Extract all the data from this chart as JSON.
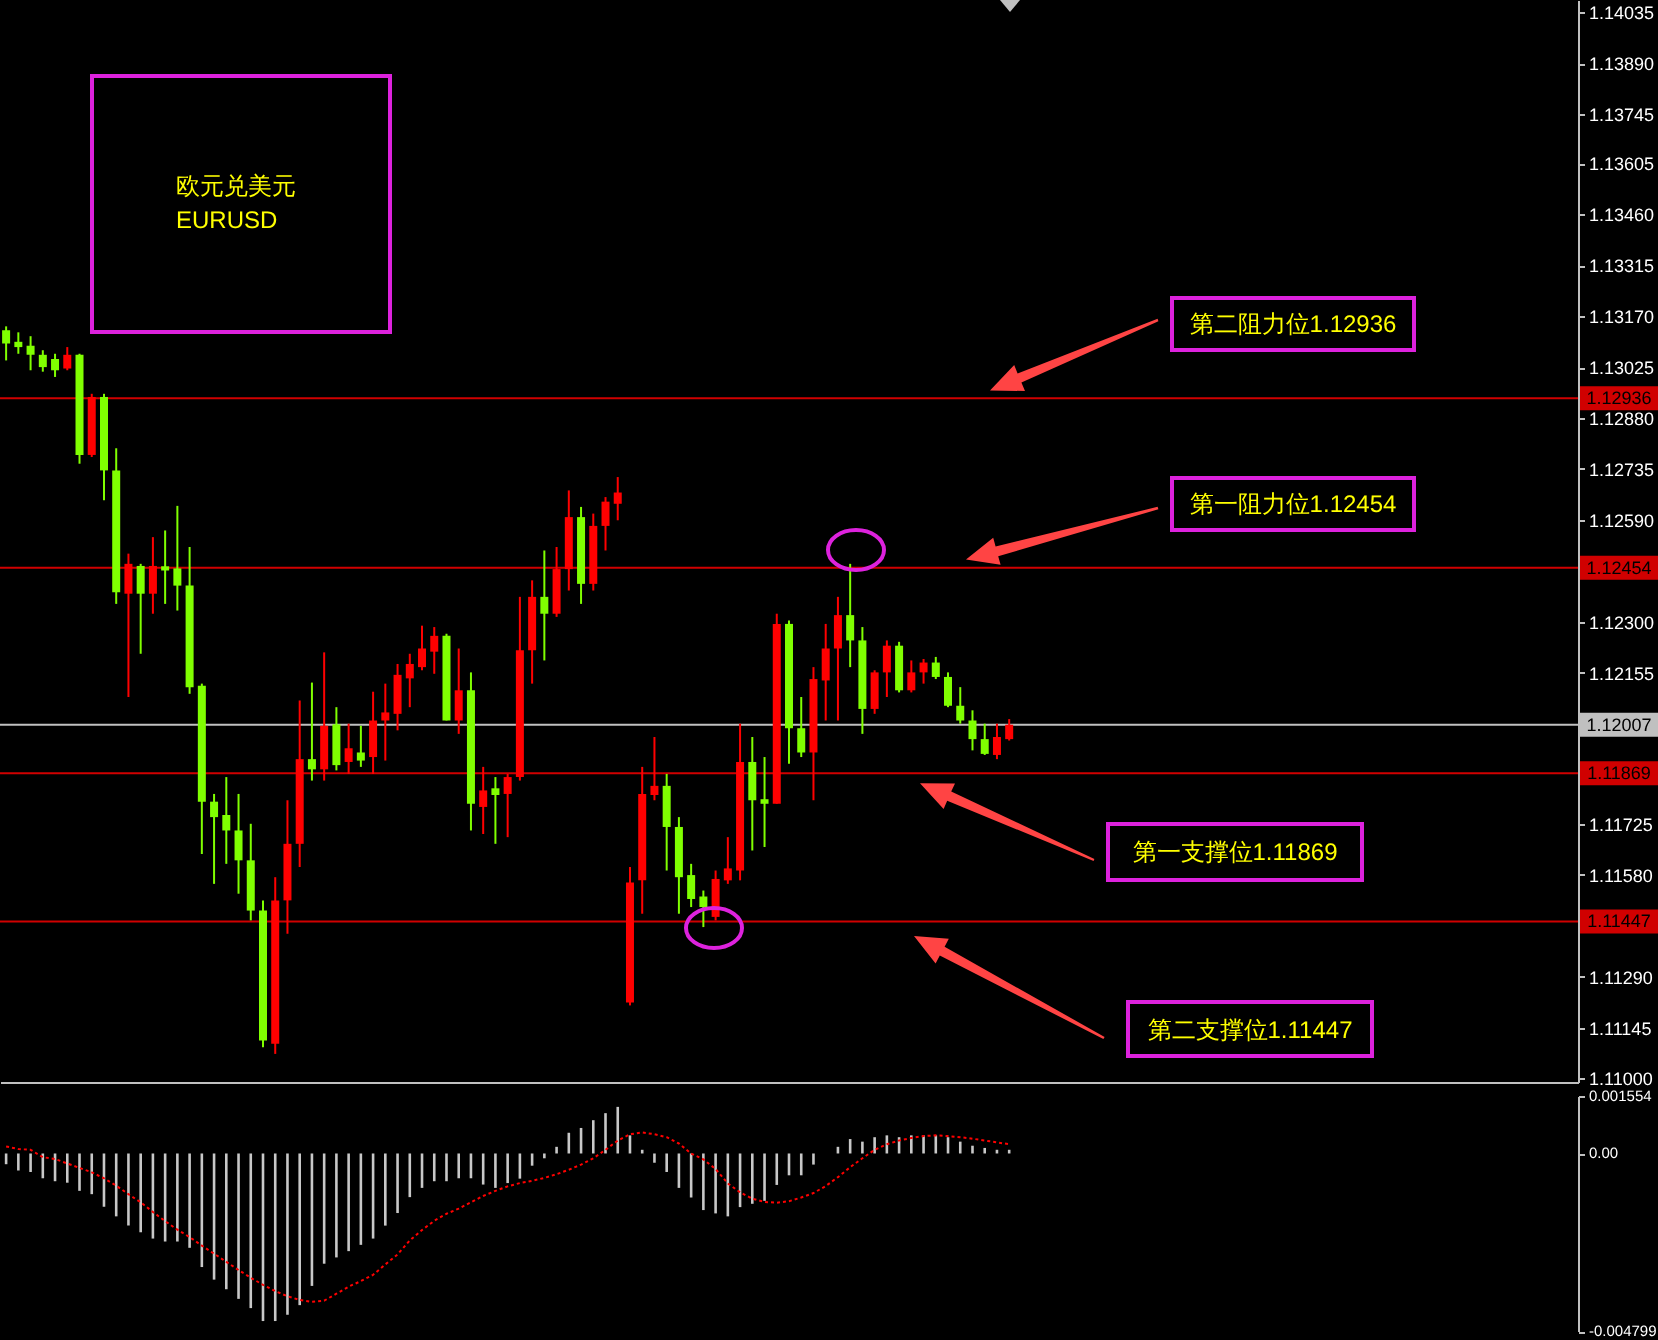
{
  "chart_data": [
    {
      "type": "candlestick",
      "title": "欧元兑美元",
      "subtitle": "EURUSD",
      "categories": [
        null,
        null,
        null,
        null,
        null,
        null,
        null,
        null,
        null,
        null,
        null,
        null,
        null,
        null,
        null,
        null,
        null,
        null,
        null,
        null,
        null,
        null,
        null,
        null,
        null,
        null,
        null,
        null,
        null,
        null,
        null,
        null,
        null,
        null,
        null,
        null,
        null,
        null,
        null,
        null,
        null,
        null,
        null,
        null,
        null,
        null,
        null,
        null,
        null,
        null,
        null,
        null,
        null,
        null,
        null,
        null,
        null,
        null,
        null,
        null,
        null,
        null,
        null,
        null,
        null,
        null,
        null,
        null,
        null,
        null,
        null,
        null,
        null,
        null,
        null,
        null,
        null,
        null,
        null,
        null,
        null,
        null,
        null,
        null,
        null,
        null,
        null,
        null,
        null,
        null,
        null,
        null,
        null,
        null,
        null,
        null,
        null,
        null,
        null,
        null,
        null,
        null,
        null,
        null,
        null,
        null,
        null,
        null,
        null,
        null,
        null,
        null,
        null,
        null,
        null,
        null,
        null,
        null,
        null,
        null,
        null,
        null,
        null,
        null,
        null,
        null,
        null,
        null,
        null
      ],
      "ohlc": [
        [
          1.1313,
          1.13141,
          1.13044,
          1.13092
        ],
        [
          1.13097,
          1.13124,
          1.13063,
          1.13082
        ],
        [
          1.13086,
          1.13113,
          1.13016,
          1.1306
        ],
        [
          1.1306,
          1.13073,
          1.13012,
          1.13025
        ],
        [
          1.13048,
          1.13063,
          1.12997,
          1.13016
        ],
        [
          1.13021,
          1.13082,
          1.13016,
          1.1306
        ],
        [
          1.1306,
          1.13063,
          1.1275,
          1.12775
        ],
        [
          1.12775,
          1.12949,
          1.12769,
          1.1294
        ],
        [
          1.1294,
          1.12949,
          1.12646,
          1.12731
        ],
        [
          1.12731,
          1.12794,
          1.12351,
          1.12384
        ],
        [
          1.1238,
          1.12494,
          1.12086,
          1.12465
        ],
        [
          1.12459,
          1.12465,
          1.12209,
          1.1238
        ],
        [
          1.1238,
          1.12541,
          1.12323,
          1.12459
        ],
        [
          1.12458,
          1.1256,
          1.12351,
          1.12446
        ],
        [
          1.12452,
          1.1263,
          1.12332,
          1.12403
        ],
        [
          1.12403,
          1.12513,
          1.12095,
          1.12114
        ],
        [
          1.12118,
          1.12124,
          1.11639,
          1.11788
        ],
        [
          1.11788,
          1.1181,
          1.11554,
          1.11744
        ],
        [
          1.1175,
          1.11858,
          1.11611,
          1.11706
        ],
        [
          1.11706,
          1.1181,
          1.11526,
          1.11621
        ],
        [
          1.11621,
          1.11725,
          1.1145,
          1.11478
        ],
        [
          1.11478,
          1.11507,
          1.11089,
          1.11108
        ],
        [
          1.11099,
          1.11573,
          1.1107,
          1.11507
        ],
        [
          1.11507,
          1.11792,
          1.11412,
          1.11668
        ],
        [
          1.11668,
          1.12076,
          1.11602,
          1.11909
        ],
        [
          1.11909,
          1.12127,
          1.11848,
          1.1188
        ],
        [
          1.1188,
          1.12213,
          1.11848,
          1.12004
        ],
        [
          1.12008,
          1.12057,
          1.11877,
          1.11892
        ],
        [
          1.11901,
          1.1201,
          1.11867,
          1.1194
        ],
        [
          1.11928,
          1.12004,
          1.11887,
          1.11905
        ],
        [
          1.11915,
          1.12101,
          1.11867,
          1.12019
        ],
        [
          1.12019,
          1.12124,
          1.11905,
          1.12042
        ],
        [
          1.12038,
          1.1218,
          1.11991,
          1.12149
        ],
        [
          1.12139,
          1.12209,
          1.12057,
          1.1218
        ],
        [
          1.12171,
          1.12289,
          1.12162,
          1.12224
        ],
        [
          1.12215,
          1.12285,
          1.12152,
          1.1226
        ],
        [
          1.1226,
          1.12266,
          1.12019,
          1.12019
        ],
        [
          1.12019,
          1.12224,
          1.11981,
          1.12105
        ],
        [
          1.12105,
          1.12156,
          1.11706,
          1.11782
        ],
        [
          1.11773,
          1.11887,
          1.11696,
          1.1182
        ],
        [
          1.11826,
          1.11858,
          1.11668,
          1.11807
        ],
        [
          1.1181,
          1.11867,
          1.11687,
          1.11858
        ],
        [
          1.11858,
          1.12371,
          1.11848,
          1.12219
        ],
        [
          1.12219,
          1.12418,
          1.12124,
          1.12371
        ],
        [
          1.12371,
          1.12503,
          1.1219,
          1.12323
        ],
        [
          1.12323,
          1.12513,
          1.12314,
          1.1245
        ],
        [
          1.1245,
          1.12674,
          1.12389,
          1.12598
        ],
        [
          1.12598,
          1.12627,
          1.12351,
          1.12408
        ],
        [
          1.12408,
          1.12608,
          1.12389,
          1.12573
        ],
        [
          1.12573,
          1.12655,
          1.12503,
          1.12642
        ],
        [
          1.12636,
          1.12712,
          1.12589,
          1.12668
        ],
        [
          1.11216,
          1.11602,
          1.11208,
          1.11558
        ],
        [
          1.11564,
          1.11887,
          1.11469,
          1.1181
        ],
        [
          1.11807,
          1.11972,
          1.11792,
          1.11833
        ],
        [
          1.11833,
          1.11867,
          1.11592,
          1.11716
        ],
        [
          1.11716,
          1.11744,
          1.11469,
          1.11573
        ],
        [
          1.11579,
          1.11611,
          1.11488,
          1.11511
        ],
        [
          1.11518,
          1.11535,
          1.11431,
          1.11488
        ],
        [
          1.1146,
          1.11592,
          1.1145,
          1.11568
        ],
        [
          1.11564,
          1.11687,
          1.11554,
          1.11598
        ],
        [
          1.11592,
          1.1201,
          1.11564,
          1.11901
        ],
        [
          1.11901,
          1.11972,
          1.11649,
          1.11792
        ],
        [
          1.11795,
          1.11915,
          1.11659,
          1.11782
        ],
        [
          1.11782,
          1.12323,
          1.11782,
          1.12294
        ],
        [
          1.12294,
          1.12304,
          1.11896,
          1.11997
        ],
        [
          1.11997,
          1.12086,
          1.11915,
          1.11928
        ],
        [
          1.11928,
          1.12171,
          1.11792,
          1.12137
        ],
        [
          1.12133,
          1.12294,
          1.12019,
          1.12224
        ],
        [
          1.12224,
          1.12371,
          1.12019,
          1.12319
        ],
        [
          1.12319,
          1.12465,
          1.12171,
          1.12247
        ],
        [
          1.12247,
          1.12285,
          1.11981,
          1.12052
        ],
        [
          1.12052,
          1.12162,
          1.12038,
          1.12156
        ],
        [
          1.12156,
          1.12247,
          1.12086,
          1.12232
        ],
        [
          1.12232,
          1.12243,
          1.12099,
          1.12105
        ],
        [
          1.12105,
          1.1219,
          1.12099,
          1.12156
        ],
        [
          1.12156,
          1.12194,
          1.12124,
          1.12184
        ],
        [
          1.12184,
          1.122,
          1.12137,
          1.12143
        ],
        [
          1.12143,
          1.12156,
          1.12057,
          1.12061
        ],
        [
          1.12061,
          1.12114,
          1.1201,
          1.12019
        ],
        [
          1.12019,
          1.12048,
          1.11934,
          1.11966
        ],
        [
          1.11966,
          1.1201,
          1.11921,
          1.11924
        ],
        [
          1.11921,
          1.1201,
          1.11909,
          1.11972
        ],
        [
          1.11966,
          1.12023,
          1.11962,
          1.12007
        ],
        null,
        null,
        null,
        null,
        null,
        null,
        null,
        null,
        null,
        null,
        null,
        null,
        null,
        null,
        null,
        null,
        null,
        null,
        null,
        null,
        null,
        null,
        null,
        null,
        null,
        null,
        null,
        null,
        null,
        null,
        null,
        null,
        null,
        null,
        null,
        null,
        null,
        null,
        null,
        null,
        null,
        null,
        null,
        null,
        null,
        null
      ],
      "colors": [
        "#80ff00",
        "#80ff00",
        "#80ff00",
        "#80ff00",
        "#80ff00",
        "#ff0000",
        "#80ff00",
        "#ff0000",
        "#80ff00",
        "#80ff00",
        "#ff0000",
        "#80ff00",
        "#ff0000",
        "#80ff00",
        "#80ff00",
        "#80ff00",
        "#80ff00",
        "#80ff00",
        "#80ff00",
        "#80ff00",
        "#80ff00",
        "#80ff00",
        "#ff0000",
        "#ff0000",
        "#ff0000",
        "#80ff00",
        "#ff0000",
        "#80ff00",
        "#ff0000",
        "#80ff00",
        "#ff0000",
        "#ff0000",
        "#ff0000",
        "#ff0000",
        "#ff0000",
        "#ff0000",
        "#80ff00",
        "#ff0000",
        "#80ff00",
        "#ff0000",
        "#80ff00",
        "#ff0000",
        "#ff0000",
        "#ff0000",
        "#80ff00",
        "#ff0000",
        "#ff0000",
        "#80ff00",
        "#ff0000",
        "#ff0000",
        "#ff0000",
        "#ff0000",
        "#ff0000",
        "#ff0000",
        "#80ff00",
        "#80ff00",
        "#80ff00",
        "#80ff00",
        "#ff0000",
        "#ff0000",
        "#ff0000",
        "#80ff00",
        "#80ff00",
        "#ff0000",
        "#80ff00",
        "#80ff00",
        "#ff0000",
        "#ff0000",
        "#ff0000",
        "#80ff00",
        "#80ff00",
        "#ff0000",
        "#ff0000",
        "#80ff00",
        "#ff0000",
        "#ff0000",
        "#80ff00",
        "#80ff00",
        "#80ff00",
        "#80ff00",
        "#80ff00",
        "#ff0000",
        "#ff0000",
        null,
        null,
        null,
        null,
        null,
        null,
        null,
        null,
        null,
        null,
        null,
        null,
        null,
        null,
        null,
        null,
        null,
        null,
        null,
        null,
        null,
        null,
        null,
        null,
        null,
        null,
        null,
        null,
        null,
        null,
        null,
        null,
        null,
        null,
        null,
        null,
        null,
        null,
        null,
        null,
        null,
        null,
        null,
        null,
        null,
        null
      ],
      "ylim": [
        1.1099,
        1.1407
      ],
      "yticks": [
        {
          "value": 1.11,
          "label": "1.11000"
        },
        1.11145,
        {
          "value": 1.1129,
          "label": "1.11290"
        },
        {
          "value": 1.1158,
          "label": "1.11580"
        },
        1.11725,
        1.12155,
        {
          "value": 1.123,
          "label": "1.12300"
        },
        {
          "value": 1.1259,
          "label": "1.12590"
        },
        1.12735,
        {
          "value": 1.1288,
          "label": "1.12880"
        },
        1.13025,
        {
          "value": 1.1317,
          "label": "1.13170"
        },
        1.13315,
        {
          "value": 1.1346,
          "label": "1.13460"
        },
        1.13605,
        1.13745,
        {
          "value": 1.1389,
          "label": "1.13890"
        },
        1.14035
      ],
      "ref_lines": [
        {
          "axis": "y",
          "value": 1.12936,
          "label": "1.12936",
          "color": "#d00000"
        },
        {
          "axis": "y",
          "value": 1.12454,
          "label": "1.12454",
          "color": "#d00000"
        },
        {
          "axis": "y",
          "value": 1.12007,
          "label": "1.12007",
          "color": "#c0c0c0"
        },
        {
          "axis": "y",
          "value": 1.11869,
          "label": "1.11869",
          "color": "#d00000"
        },
        {
          "axis": "y",
          "value": 1.11447,
          "label": "1.11447",
          "color": "#d00000"
        }
      ],
      "annotations": [
        {
          "text": "第二阻力位1.12936",
          "y": 1.12936
        },
        {
          "text": "第一阻力位1.12454",
          "y": 1.12454
        },
        {
          "text": "第一支撑位1.11869",
          "y": 1.11869
        },
        "第二支撑位1.11447"
      ],
      "tick_labels": "y"
    },
    {
      "type": "bar",
      "categories": [
        null,
        null,
        null,
        null,
        null,
        null,
        null,
        null,
        null,
        null,
        null,
        null,
        null,
        null,
        null,
        null,
        null,
        null,
        null,
        null,
        null,
        null,
        null,
        null,
        null,
        null,
        null,
        null,
        null,
        null,
        null,
        null,
        null,
        null,
        null,
        null,
        null,
        null,
        null,
        null,
        null,
        null,
        null,
        null,
        null,
        null,
        null,
        null,
        null,
        null,
        null,
        null,
        null,
        null,
        null,
        null,
        null,
        null,
        null,
        null,
        null,
        null,
        null,
        null,
        null,
        null,
        null,
        null,
        null,
        null,
        null,
        null,
        null,
        null,
        null,
        null,
        null,
        null,
        null,
        null,
        null,
        null,
        null,
        null,
        null,
        null,
        null,
        null,
        null,
        null,
        null,
        null,
        null,
        null,
        null,
        null,
        null,
        null,
        null,
        null,
        null,
        null,
        null,
        null,
        null,
        null,
        null,
        null,
        null,
        null,
        null,
        null,
        null,
        null,
        null,
        null,
        null,
        null,
        null,
        null,
        null,
        null,
        null,
        null,
        null,
        null,
        null,
        null,
        null
      ],
      "series": [
        {
          "color": "#c8c8c8",
          "values": [
            -0.00029,
            -0.00046,
            -0.0005,
            -0.00067,
            -0.00075,
            -0.00079,
            -0.00101,
            -0.0011,
            -0.00144,
            -0.0017,
            -0.00195,
            -0.00213,
            -0.0023,
            -0.00238,
            -0.00238,
            -0.00255,
            -0.00307,
            -0.00341,
            -0.00367,
            -0.00393,
            -0.00418,
            -0.00453,
            -0.00453,
            -0.00436,
            -0.0041,
            -0.00358,
            -0.00298,
            -0.00281,
            -0.00264,
            -0.00247,
            -0.0023,
            -0.00195,
            -0.00161,
            -0.00118,
            -0.00093,
            -0.00075,
            -0.00075,
            -0.00067,
            -0.00067,
            -0.00084,
            -0.00093,
            -0.0008,
            -0.00068,
            -0.00033,
            -0.00013,
            0.00018,
            0.00056,
            0.00069,
            0.0009,
            0.00109,
            0.00126,
            0.00049,
            0.0001,
            -0.00025,
            -0.0005,
            -0.00093,
            -0.00119,
            -0.00153,
            -0.00162,
            -0.0017,
            -0.00145,
            -0.00136,
            -0.00128,
            -0.00085,
            -0.00059,
            -0.00059,
            -0.0003,
            0,
            0.00018,
            0.00039,
            0.00032,
            0.00044,
            0.00049,
            0.00044,
            0.00049,
            0.00049,
            0.00049,
            0.00044,
            0.00032,
            0.00021,
            0.00015,
            0.0001,
            0.0001,
            null,
            null,
            null,
            null,
            null,
            null,
            null,
            null,
            null,
            null,
            null,
            null,
            null,
            null,
            null,
            null,
            null,
            null,
            null,
            null,
            null,
            null,
            null,
            null,
            null,
            null,
            null,
            null,
            null,
            null,
            null,
            null,
            null,
            null,
            null,
            null,
            null,
            null,
            null,
            null,
            null,
            null,
            null,
            null,
            null,
            null
          ]
        },
        {
          "type": "line",
          "color": "#ff0000",
          "line_style": "dotted",
          "values": [
            0.00019,
            0.00012,
            0.0001,
            -0.0001,
            -0.00015,
            -0.00027,
            -0.00039,
            -0.00051,
            -0.00067,
            -0.00087,
            -0.0011,
            -0.00132,
            -0.00158,
            -0.00183,
            -0.00206,
            -0.00226,
            -0.00249,
            -0.00271,
            -0.00293,
            -0.00315,
            -0.00336,
            -0.00355,
            -0.00372,
            -0.00386,
            -0.00396,
            -0.00401,
            -0.00398,
            -0.00379,
            -0.0036,
            -0.00345,
            -0.00328,
            -0.003,
            -0.00273,
            -0.00235,
            -0.00207,
            -0.00182,
            -0.00163,
            -0.00149,
            -0.00132,
            -0.00115,
            -0.00101,
            -0.00089,
            -0.0008,
            -0.00074,
            -0.00066,
            -0.00056,
            -0.00044,
            -0.0003,
            -0.00013,
            0.0001,
            0.00035,
            0.00052,
            0.00057,
            0.00052,
            0.00044,
            0.00027,
            0,
            -0.00016,
            -0.00042,
            -0.00081,
            -0.00105,
            -0.00122,
            -0.00131,
            -0.00133,
            -0.00129,
            -0.00119,
            -0.00107,
            -0.00088,
            -0.00064,
            -0.00037,
            -0.00013,
            0.0001,
            0.00025,
            0.00035,
            0.00042,
            0.00047,
            0.00049,
            0.00047,
            0.00044,
            0.0004,
            0.00035,
            0.0003,
            0.00025,
            null,
            null,
            null,
            null,
            null,
            null,
            null,
            null,
            null,
            null,
            null,
            null,
            null,
            null,
            null,
            null,
            null,
            null,
            null,
            null,
            null,
            null,
            null,
            null,
            null,
            null,
            null,
            null,
            null,
            null,
            null,
            null,
            null,
            null,
            null,
            null,
            null,
            null,
            null,
            null,
            null,
            null,
            null,
            null,
            null,
            null
          ]
        }
      ],
      "ylim": [
        -0.004799,
        0.001554
      ],
      "yticks": [
        0.001554,
        {
          "value": 0,
          "label": "0.00"
        },
        -0.004799
      ],
      "tick_labels": "y"
    }
  ]
}
